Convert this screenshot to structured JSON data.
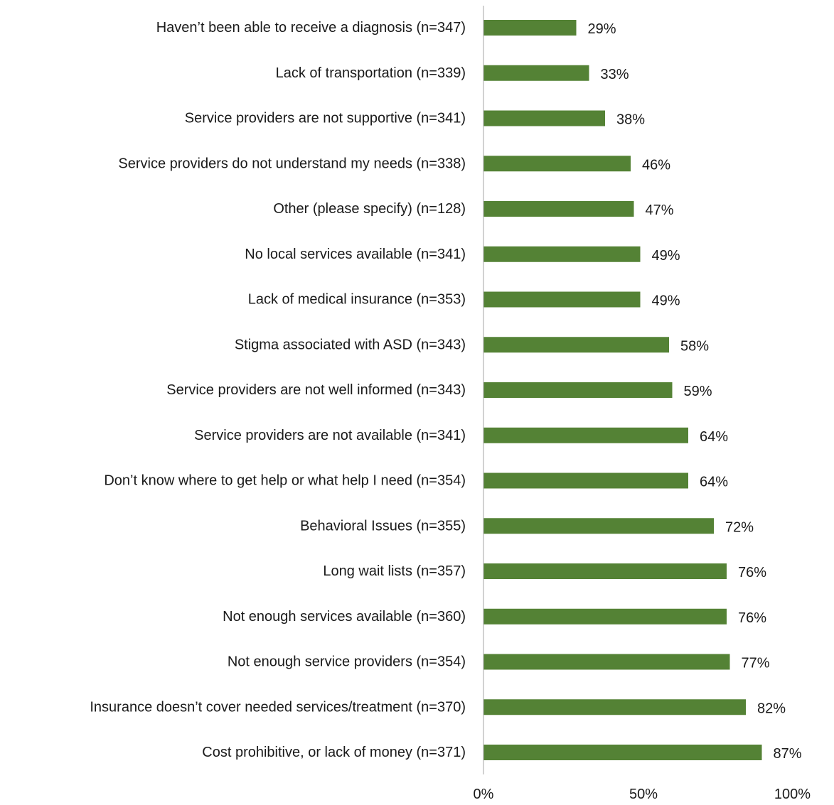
{
  "chart_data": {
    "type": "bar",
    "orientation": "horizontal",
    "title": "",
    "xlabel": "",
    "ylabel": "",
    "xlim": [
      0,
      100
    ],
    "grid": false,
    "bar_color": "#548235",
    "categories": [
      "Haven’t been able to receive a diagnosis (n=347)",
      "Lack of transportation (n=339)",
      "Service providers are not supportive (n=341)",
      "Service providers do not understand my needs (n=338)",
      "Other (please specify) (n=128)",
      "No local services available (n=341)",
      "Lack of medical insurance (n=353)",
      "Stigma associated with ASD (n=343)",
      "Service providers are not well informed (n=343)",
      "Service providers are not available (n=341)",
      "Don’t know where to get help or what help I need (n=354)",
      "Behavioral Issues (n=355)",
      "Long wait lists (n=357)",
      "Not enough services available (n=360)",
      "Not enough service providers (n=354)",
      "Insurance doesn’t cover needed services/treatment (n=370)",
      "Cost prohibitive, or lack of money (n=371)"
    ],
    "values": [
      29,
      33,
      38,
      46,
      47,
      49,
      49,
      58,
      59,
      64,
      64,
      72,
      76,
      76,
      77,
      82,
      87
    ],
    "value_labels": [
      "29%",
      "33%",
      "38%",
      "46%",
      "47%",
      "49%",
      "49%",
      "58%",
      "59%",
      "64%",
      "64%",
      "72%",
      "76%",
      "76%",
      "77%",
      "82%",
      "87%"
    ],
    "x_ticks": [
      0,
      50,
      100
    ],
    "x_tick_labels": [
      "0%",
      "50%",
      "100%"
    ]
  }
}
